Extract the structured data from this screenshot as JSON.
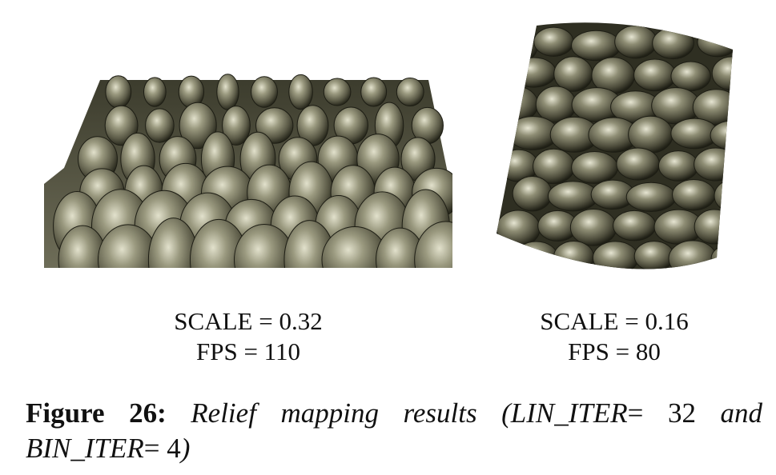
{
  "panels": [
    {
      "scale_text": "SCALE = 0.32",
      "fps_text": "FPS = 110"
    },
    {
      "scale_text": "SCALE = 0.16",
      "fps_text": "FPS = 80"
    }
  ],
  "caption": {
    "label": "Figure 26:",
    "text_a": "Relief mapping results (LIN_ITER",
    "eq1": "=",
    "val1": "32",
    "text_b": "and BIN_ITER",
    "eq2": "=",
    "val2": "4",
    "close": ")"
  },
  "colors": {
    "relief_base": "#6b6a55",
    "relief_highlight": "#d9d8c4",
    "relief_shadow": "#262619"
  }
}
